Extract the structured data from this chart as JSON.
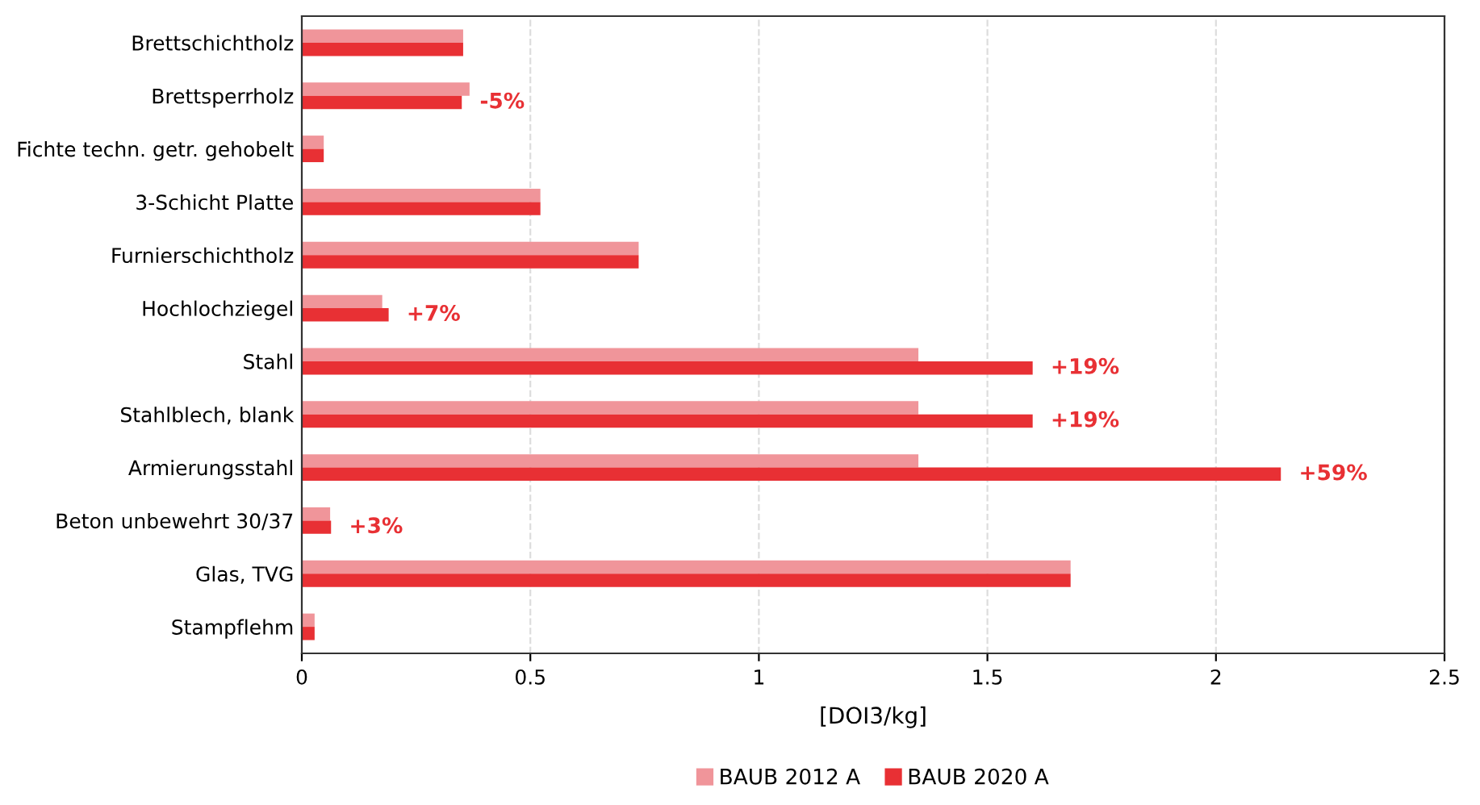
{
  "chart_data": {
    "type": "bar",
    "orientation": "horizontal",
    "xlabel": "[DOI3/kg]",
    "categories": [
      "Brettschichtholz",
      "Brettsperrholz",
      "Fichte techn. getr. gehobelt",
      "3-Schicht Platte",
      "Furnierschichtholz",
      "Hochlochziegel",
      "Stahl",
      "Stahlblech, blank",
      "Armierungsstahl",
      "Beton unbewehrt 30/37",
      "Glas, TVG",
      "Stampflehm"
    ],
    "series": [
      {
        "name": "BAUB 2012 A",
        "color": "#f0959a",
        "values": [
          0.353,
          0.367,
          0.048,
          0.522,
          0.737,
          0.176,
          1.349,
          1.349,
          1.349,
          0.062,
          1.682,
          0.028
        ]
      },
      {
        "name": "BAUB 2020 A",
        "color": "#e83034",
        "values": [
          0.353,
          0.35,
          0.048,
          0.522,
          0.737,
          0.19,
          1.599,
          1.599,
          2.142,
          0.064,
          1.682,
          0.028
        ]
      }
    ],
    "annotations": [
      {
        "text": "-5%",
        "x": 0.35,
        "y": "Brettsperrholz"
      },
      {
        "text": "+7%",
        "x": 0.19,
        "y": "Hochlochziegel"
      },
      {
        "text": "+19%",
        "x": 1.599,
        "y": "Stahl"
      },
      {
        "text": "+19%",
        "x": 1.599,
        "y": "Stahlblech, blank"
      },
      {
        "text": "+59%",
        "x": 2.142,
        "y": "Armierungsstahl"
      },
      {
        "text": "+3%",
        "x": 0.064,
        "y": "Beton unbewehrt 30/37"
      }
    ],
    "xlim": [
      0,
      2.5
    ],
    "xticks": [
      0,
      0.5,
      1,
      1.5,
      2,
      2.5
    ],
    "grid": "x",
    "legend": "bottom"
  }
}
